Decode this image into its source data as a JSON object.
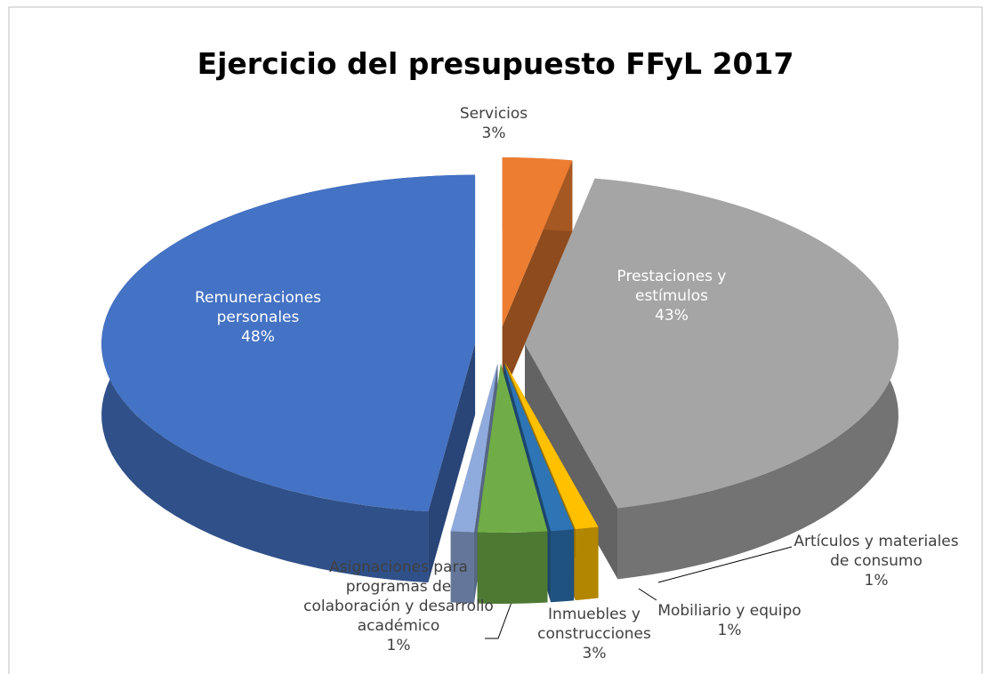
{
  "chart_data": {
    "type": "pie",
    "title": "Ejercicio del presupuesto FFyL 2017",
    "categories": [
      "Servicios",
      "Prestaciones y estímulos",
      "Artículos y materiales de consumo",
      "Mobiliario y equipo",
      "Inmuebles y construcciones",
      "Asignaciones para programas de colaboración y desarrollo académico",
      "Remuneraciones personales"
    ],
    "values": [
      3,
      43,
      1,
      1,
      3,
      1,
      48
    ],
    "value_labels": [
      "3%",
      "43%",
      "1%",
      "1%",
      "3%",
      "1%",
      "48%"
    ],
    "colors": [
      "#ed7d31",
      "#a5a5a5",
      "#ffc000",
      "#2e75b6",
      "#70ad47",
      "#8faadc",
      "#4472c4"
    ]
  }
}
